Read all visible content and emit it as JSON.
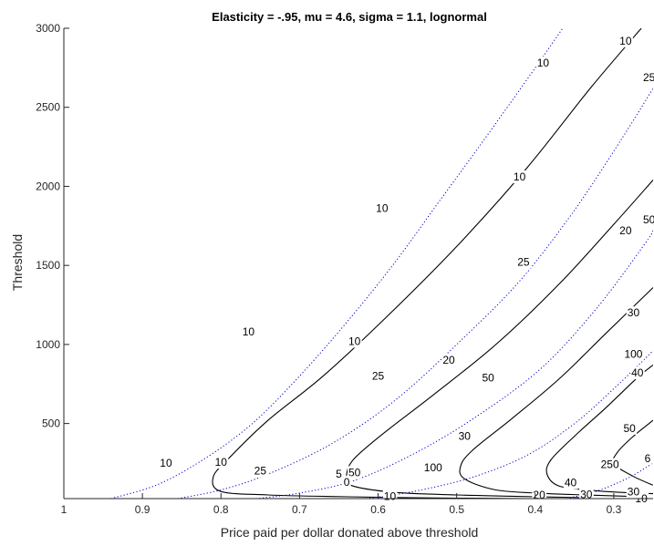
{
  "chart_data": {
    "type": "contour",
    "title": "Elasticity = -.95, mu = 4.6, sigma = 1.1, lognormal",
    "xlabel": "Price paid per dollar donated above threshold",
    "ylabel": "Threshold",
    "x_reversed": true,
    "xlim": [
      0.25,
      1
    ],
    "ylim": [
      25,
      3000
    ],
    "xticks": [
      1,
      0.9,
      0.8,
      0.7,
      0.6,
      0.5,
      0.4,
      0.3
    ],
    "xtick_labels": [
      "1",
      "0.9",
      "0.8",
      "0.7",
      "0.6",
      "0.5",
      "0.4",
      "0.3"
    ],
    "yticks": [
      500,
      1000,
      1500,
      2000,
      2500,
      3000
    ],
    "ytick_labels": [
      "500",
      "1000",
      "1500",
      "2000",
      "2500",
      "3000"
    ],
    "colors": {
      "solid": "#000000",
      "dotted": "#0000cc",
      "axis": "#262626"
    },
    "series": [
      {
        "style": "solid",
        "points": [
          [
            0.41,
            25
          ],
          [
            0.5,
            28
          ],
          [
            0.58,
            32
          ],
          [
            0.66,
            38
          ],
          [
            0.74,
            48
          ],
          [
            0.8,
            70
          ],
          [
            0.81,
            160
          ],
          [
            0.79,
            280
          ],
          [
            0.74,
            520
          ],
          [
            0.67,
            800
          ],
          [
            0.59,
            1170
          ],
          [
            0.5,
            1620
          ],
          [
            0.41,
            2120
          ],
          [
            0.33,
            2620
          ],
          [
            0.265,
            3000
          ]
        ],
        "labels": [
          {
            "text": "10",
            "x": 0.585,
            "y": 40
          },
          {
            "text": "10",
            "x": 0.8,
            "y": 255
          },
          {
            "text": "10",
            "x": 0.63,
            "y": 1020
          },
          {
            "text": "10",
            "x": 0.42,
            "y": 2060
          },
          {
            "text": "10",
            "x": 0.285,
            "y": 2920
          }
        ]
      },
      {
        "style": "solid",
        "points": [
          [
            0.335,
            31
          ],
          [
            0.38,
            35
          ],
          [
            0.43,
            40
          ],
          [
            0.5,
            48
          ],
          [
            0.58,
            65
          ],
          [
            0.635,
            110
          ],
          [
            0.64,
            180
          ],
          [
            0.63,
            280
          ],
          [
            0.59,
            450
          ],
          [
            0.53,
            680
          ],
          [
            0.45,
            1000
          ],
          [
            0.37,
            1380
          ],
          [
            0.3,
            1760
          ],
          [
            0.25,
            2040
          ]
        ],
        "labels": [
          {
            "text": "20",
            "x": 0.395,
            "y": 48
          },
          {
            "text": "20",
            "x": 0.51,
            "y": 900
          },
          {
            "text": "20",
            "x": 0.285,
            "y": 1720
          }
        ]
      },
      {
        "style": "solid",
        "points": [
          [
            0.28,
            39
          ],
          [
            0.33,
            47
          ],
          [
            0.39,
            58
          ],
          [
            0.45,
            80
          ],
          [
            0.49,
            150
          ],
          [
            0.495,
            230
          ],
          [
            0.48,
            330
          ],
          [
            0.43,
            530
          ],
          [
            0.37,
            780
          ],
          [
            0.31,
            1070
          ],
          [
            0.25,
            1360
          ]
        ],
        "labels": [
          {
            "text": "30",
            "x": 0.335,
            "y": 52
          },
          {
            "text": "30",
            "x": 0.49,
            "y": 420
          },
          {
            "text": "30",
            "x": 0.275,
            "y": 1200
          }
        ]
      },
      {
        "style": "solid",
        "points": [
          [
            0.25,
            56
          ],
          [
            0.29,
            64
          ],
          [
            0.33,
            78
          ],
          [
            0.37,
            105
          ],
          [
            0.385,
            180
          ],
          [
            0.38,
            270
          ],
          [
            0.35,
            420
          ],
          [
            0.31,
            600
          ],
          [
            0.27,
            790
          ],
          [
            0.25,
            870
          ]
        ],
        "labels": [
          {
            "text": "40",
            "x": 0.355,
            "y": 125
          },
          {
            "text": "40",
            "x": 0.27,
            "y": 820
          }
        ]
      },
      {
        "style": "solid",
        "points": [
          [
            0.25,
            110
          ],
          [
            0.275,
            165
          ],
          [
            0.3,
            245
          ],
          [
            0.295,
            320
          ],
          [
            0.275,
            420
          ],
          [
            0.25,
            520
          ]
        ],
        "labels": [
          {
            "text": "50",
            "x": 0.28,
            "y": 470
          }
        ]
      },
      {
        "style": "dotted",
        "points": [
          [
            0.94,
            25
          ],
          [
            0.88,
            115
          ],
          [
            0.82,
            280
          ],
          [
            0.76,
            500
          ],
          [
            0.7,
            800
          ],
          [
            0.64,
            1140
          ],
          [
            0.58,
            1510
          ],
          [
            0.52,
            1920
          ],
          [
            0.46,
            2330
          ],
          [
            0.4,
            2750
          ],
          [
            0.365,
            3000
          ]
        ],
        "labels": [
          {
            "text": "10",
            "x": 0.87,
            "y": 250
          },
          {
            "text": "10",
            "x": 0.765,
            "y": 1080
          },
          {
            "text": "10",
            "x": 0.595,
            "y": 1860
          },
          {
            "text": "10",
            "x": 0.39,
            "y": 2780
          }
        ]
      },
      {
        "style": "dotted",
        "points": [
          [
            0.855,
            25
          ],
          [
            0.8,
            80
          ],
          [
            0.74,
            180
          ],
          [
            0.66,
            370
          ],
          [
            0.58,
            640
          ],
          [
            0.5,
            1000
          ],
          [
            0.42,
            1400
          ],
          [
            0.35,
            1850
          ],
          [
            0.29,
            2300
          ],
          [
            0.25,
            2620
          ]
        ],
        "labels": [
          {
            "text": "25",
            "x": 0.75,
            "y": 200
          },
          {
            "text": "25",
            "x": 0.6,
            "y": 800
          },
          {
            "text": "25",
            "x": 0.415,
            "y": 1520
          },
          {
            "text": "25",
            "x": 0.255,
            "y": 2690
          }
        ]
      },
      {
        "style": "dotted",
        "points": [
          [
            0.755,
            25
          ],
          [
            0.7,
            60
          ],
          [
            0.63,
            140
          ],
          [
            0.55,
            320
          ],
          [
            0.47,
            560
          ],
          [
            0.39,
            860
          ],
          [
            0.32,
            1240
          ],
          [
            0.26,
            1640
          ],
          [
            0.25,
            1720
          ]
        ],
        "labels": [
          {
            "text": "50",
            "x": 0.63,
            "y": 190
          },
          {
            "text": "50",
            "x": 0.46,
            "y": 790
          },
          {
            "text": "50",
            "x": 0.255,
            "y": 1790
          }
        ]
      },
      {
        "style": "dotted",
        "points": [
          [
            0.615,
            25
          ],
          [
            0.555,
            70
          ],
          [
            0.48,
            160
          ],
          [
            0.41,
            300
          ],
          [
            0.35,
            500
          ],
          [
            0.3,
            720
          ],
          [
            0.25,
            960
          ]
        ],
        "labels": [
          {
            "text": "100",
            "x": 0.53,
            "y": 220
          },
          {
            "text": "100",
            "x": 0.275,
            "y": 940
          }
        ]
      },
      {
        "style": "dotted",
        "points": [
          [
            0.36,
            25
          ],
          [
            0.32,
            75
          ],
          [
            0.28,
            160
          ],
          [
            0.25,
            250
          ]
        ],
        "labels": [
          {
            "text": "250",
            "x": 0.305,
            "y": 240
          }
        ]
      }
    ],
    "extra_labels": [
      {
        "text": "10",
        "x": 0.265,
        "y": 25,
        "style": "solid"
      },
      {
        "text": "30",
        "x": 0.275,
        "y": 68,
        "style": "solid"
      },
      {
        "text": "5",
        "x": 0.65,
        "y": 180,
        "style": "solid"
      },
      {
        "text": "0",
        "x": 0.64,
        "y": 130,
        "style": "dotted"
      },
      {
        "text": "6",
        "x": 0.257,
        "y": 280,
        "style": "dotted"
      }
    ]
  }
}
